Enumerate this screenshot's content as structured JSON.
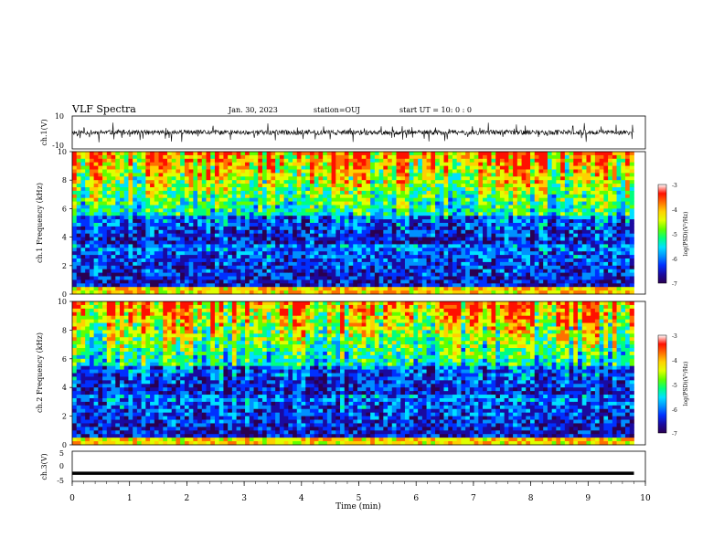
{
  "header": {
    "title": "VLF Spectra",
    "date": "Jan. 30, 2023",
    "station": "station=OUJ",
    "start": "start UT =  10: 0  : 0"
  },
  "chart_data": [
    {
      "type": "line",
      "panel": "ch1-waveform",
      "ylabel": "ch.1(V)",
      "ylim": [
        -10,
        10
      ],
      "xlim": [
        0,
        10
      ],
      "ytick_labels": [
        "10",
        "-10"
      ],
      "grid": false,
      "seed": 11,
      "description_values": {
        "baseline_v": 0,
        "typical_amplitude_v": 1.5,
        "spike_amplitude_v": 6
      }
    },
    {
      "type": "heatmap",
      "panel": "ch1-spectrogram",
      "ylabel": "ch.1\nFrequency (kHz)",
      "ylim": [
        0,
        10
      ],
      "xlim": [
        0,
        9.8
      ],
      "ytick_labels": [
        "0",
        "2",
        "4",
        "6",
        "8",
        "10"
      ],
      "seed": 7,
      "colorbar": {
        "label": "log(PSD)(V²/Hz)",
        "range": [
          -7,
          -3
        ],
        "tick_labels": [
          "-3",
          "-4",
          "-5",
          "-6",
          "-7"
        ]
      }
    },
    {
      "type": "heatmap",
      "panel": "ch2-spectrogram",
      "ylabel": "ch.2\nFrequency (kHz)",
      "ylim": [
        0,
        10
      ],
      "xlim": [
        0,
        9.8
      ],
      "ytick_labels": [
        "0",
        "2",
        "4",
        "6",
        "8",
        "10"
      ],
      "seed": 23,
      "colorbar": {
        "label": "log(PSD)(V²/Hz)",
        "range": [
          -7,
          -3
        ],
        "tick_labels": [
          "-3",
          "-4",
          "-5",
          "-6",
          "-7"
        ]
      }
    },
    {
      "type": "line",
      "panel": "ch3-waveform",
      "ylabel": "ch.3(V)",
      "ylim": [
        -5,
        5
      ],
      "xlim": [
        0,
        10
      ],
      "ytick_labels": [
        "5",
        "0",
        "-5"
      ],
      "grid": false,
      "x": [
        0,
        9.8
      ],
      "y": [
        -2.3,
        -2.3
      ]
    }
  ],
  "x_axis": {
    "label": "Time (min)",
    "tick_labels": [
      "0",
      "1",
      "2",
      "3",
      "4",
      "5",
      "6",
      "7",
      "8",
      "9",
      "10"
    ],
    "range": [
      0,
      10
    ]
  },
  "colors": {
    "axis": "#000000",
    "colormap": [
      "#2a0050",
      "#1a0aa0",
      "#0030ff",
      "#0090ff",
      "#00e0ff",
      "#00ff80",
      "#60ff00",
      "#e0ff00",
      "#ffd000",
      "#ff7000",
      "#ff1000",
      "#ffffff"
    ]
  }
}
